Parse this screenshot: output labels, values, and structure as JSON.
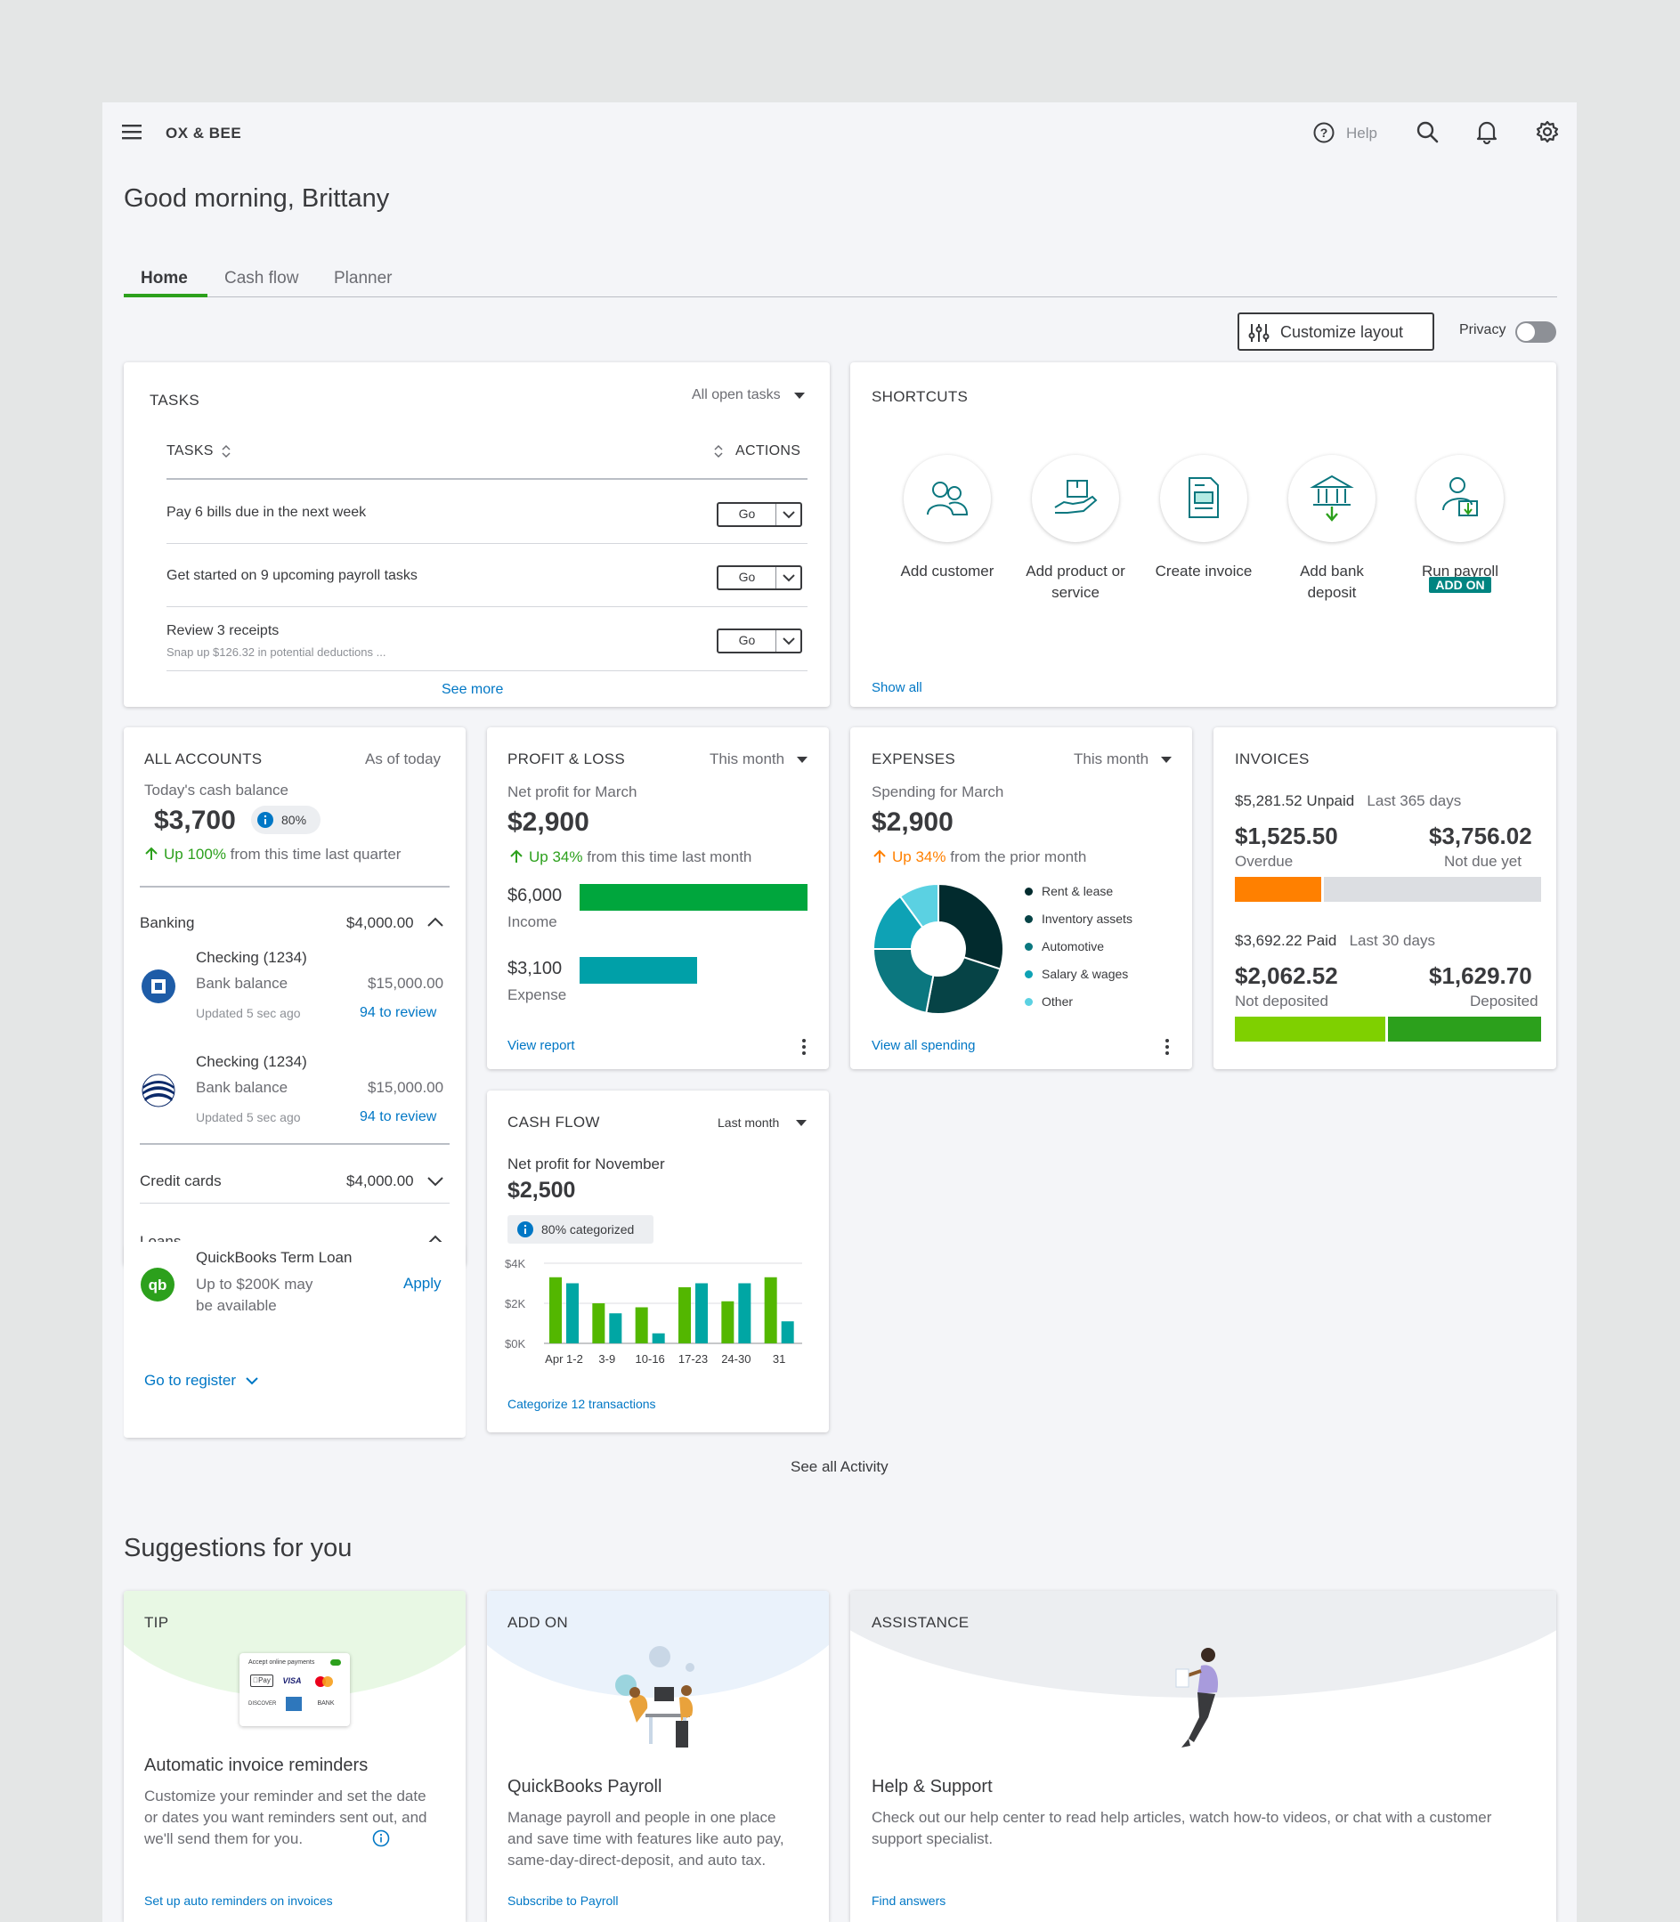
{
  "app": {
    "company": "OX & BEE",
    "help": "Help"
  },
  "greeting": "Good morning, Brittany",
  "tabs": [
    {
      "label": "Home"
    },
    {
      "label": "Cash flow"
    },
    {
      "label": "Planner"
    }
  ],
  "toolbar": {
    "customize": "Customize layout",
    "privacy": "Privacy"
  },
  "tasks": {
    "title": "TASKS",
    "filter": "All open tasks",
    "col_tasks": "TASKS",
    "col_actions": "ACTIONS",
    "items": [
      {
        "label": "Pay 6 bills due in the next week",
        "sub": "",
        "action": "Go"
      },
      {
        "label": "Get started on 9 upcoming payroll tasks",
        "sub": "",
        "action": "Go"
      },
      {
        "label": "Review 3 receipts",
        "sub": "Snap up $126.32 in potential deductions ...",
        "action": "Go"
      }
    ],
    "see_more": "See more"
  },
  "shortcuts": {
    "title": "SHORTCUTS",
    "items": [
      {
        "label_lines": [
          "Add customer"
        ],
        "icon": "customers-icon"
      },
      {
        "label_lines": [
          "Add product or",
          "service"
        ],
        "icon": "product-box-icon"
      },
      {
        "label_lines": [
          "Create invoice"
        ],
        "icon": "invoice-icon"
      },
      {
        "label_lines": [
          "Add bank",
          "deposit"
        ],
        "icon": "bank-deposit-icon"
      },
      {
        "label_lines": [
          "Run payroll"
        ],
        "icon": "payroll-icon",
        "badge": "ADD ON"
      }
    ],
    "show_all": "Show all"
  },
  "accounts": {
    "title": "ALL ACCOUNTS",
    "as_of": "As of today",
    "cash_label": "Today's cash balance",
    "cash_value": "$3,700",
    "pct_badge": "80%",
    "change_pct": "Up 100%",
    "change_text": "from this time last quarter",
    "banking": {
      "label": "Banking",
      "total": "$4,000.00"
    },
    "bank_accounts": [
      {
        "name": "Checking (1234)",
        "balance_label": "Bank balance",
        "balance": "$15,000.00",
        "updated": "Updated 5 sec ago",
        "review": "94 to review",
        "logo": "chase-logo-icon"
      },
      {
        "name": "Checking (1234)",
        "balance_label": "Bank balance",
        "balance": "$15,000.00",
        "updated": "Updated 5 sec ago",
        "review": "94 to review",
        "logo": "globe-bank-logo-icon"
      }
    ],
    "credit": {
      "label": "Credit cards",
      "total": "$4,000.00"
    },
    "loans": {
      "label": "Loans",
      "product": "QuickBooks Term Loan",
      "desc_lines": [
        "Up to $200K may",
        "be available"
      ],
      "apply": "Apply"
    },
    "register": "Go to register"
  },
  "pl": {
    "title": "PROFIT & LOSS",
    "period": "This month",
    "net_label": "Net profit for March",
    "net": "$2,900",
    "change_pct": "Up 34%",
    "change_text": "from this time last month",
    "income_value": "$6,000",
    "income_label": "Income",
    "income_amount": 6000,
    "expense_value": "$3,100",
    "expense_label": "Expense",
    "expense_amount": 3100,
    "link": "View report"
  },
  "expenses": {
    "title": "EXPENSES",
    "period": "This month",
    "label": "Spending for March",
    "value": "$2,900",
    "change_pct": "Up 34%",
    "change_text": "from the prior month",
    "categories": [
      {
        "name": "Rent & lease",
        "color": "#022b2e",
        "share": 0.3
      },
      {
        "name": "Inventory assets",
        "color": "#064346",
        "share": 0.23
      },
      {
        "name": "Automotive",
        "color": "#0b777f",
        "share": 0.22
      },
      {
        "name": "Salary & wages",
        "color": "#0ea2b5",
        "share": 0.15
      },
      {
        "name": "Other",
        "color": "#5bd1e2",
        "share": 0.1
      }
    ],
    "link": "View all spending"
  },
  "invoices": {
    "title": "INVOICES",
    "unpaid": {
      "label": "$5,281.52 Unpaid",
      "period": "Last 365 days",
      "overdue": "$1,525.50",
      "overdue_label": "Overdue",
      "not_due": "$3,756.02",
      "not_due_label": "Not due yet",
      "overdue_share": 0.29
    },
    "paid": {
      "label": "$3,692.22 Paid",
      "period": "Last 30 days",
      "not_deposited": "$2,062.52",
      "not_deposited_label": "Not deposited",
      "deposited": "$1,629.70",
      "deposited_label": "Deposited",
      "not_deposited_share": 0.5
    }
  },
  "cashflow": {
    "title": "CASH FLOW",
    "period": "Last month",
    "net_label": "Net profit for November",
    "net": "$2,500",
    "badge": "80% categorized",
    "link": "Categorize 12 transactions"
  },
  "chart_data": {
    "type": "bar",
    "categories": [
      "Apr 1-2",
      "3-9",
      "10-16",
      "17-23",
      "24-30",
      "31"
    ],
    "series": [
      {
        "color": "#53b700",
        "values": [
          3300,
          2000,
          1800,
          2800,
          2100,
          3300
        ]
      },
      {
        "color": "#00a6a4",
        "values": [
          3000,
          1500,
          500,
          3000,
          3000,
          1100
        ]
      }
    ],
    "yticks": [
      "$4K",
      "$2K",
      "$0K"
    ],
    "ylim": [
      0,
      4000
    ]
  },
  "see_all_activity": "See all Activity",
  "suggestions": {
    "title": "Suggestions for you",
    "cards": [
      {
        "tag": "TIP",
        "heading": "Automatic invoice reminders",
        "body_lines": [
          "Customize your reminder and set the date",
          "or dates you want reminders sent out, and",
          "we'll send them for you."
        ],
        "link": "Set up auto reminders on invoices",
        "mini_title": "Accept online payments",
        "payment_labels": [
          "Pay",
          "VISA",
          "",
          "DISCOVER",
          "",
          "BANK"
        ]
      },
      {
        "tag": "ADD ON",
        "heading": "QuickBooks Payroll",
        "body_lines": [
          "Manage payroll and people in one place",
          "and save time with features like auto pay,",
          "same-day-direct-deposit, and auto tax."
        ],
        "link": "Subscribe to Payroll"
      },
      {
        "tag": "ASSISTANCE",
        "heading": "Help & Support",
        "body_lines": [
          "Check out our help center to read help articles, watch how-to videos, or chat with a customer",
          "support specialist."
        ],
        "link": "Find answers"
      }
    ]
  },
  "colors": {
    "brand_green": "#2ca01c",
    "link": "#0077c5",
    "text": "#393a3d",
    "overdue": "#ff8000",
    "deposited": "#2ca01c",
    "not_deposited": "#7fd000"
  }
}
